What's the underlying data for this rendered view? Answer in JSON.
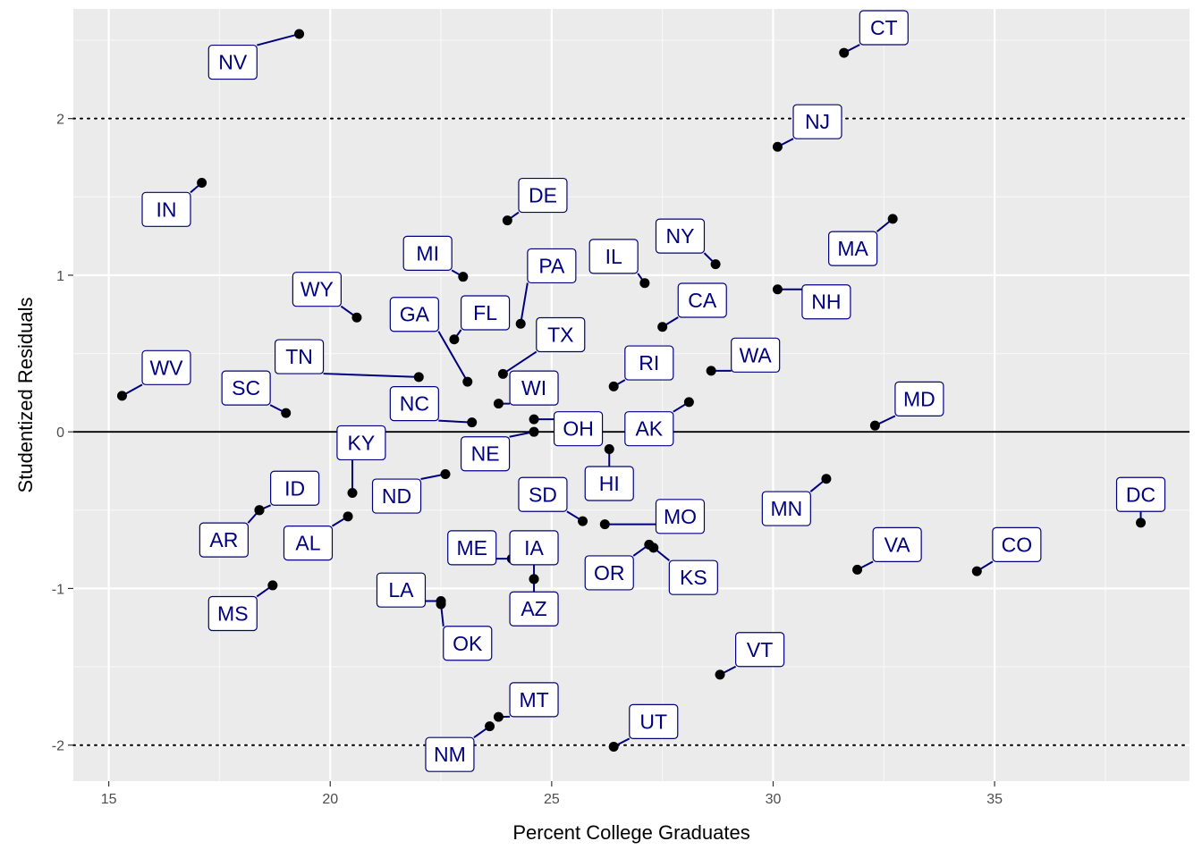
{
  "chart_data": {
    "type": "scatter",
    "title": "",
    "xlabel": "Percent College Graduates",
    "ylabel": "Studentized Residuals",
    "xlim": [
      14.2,
      39.4
    ],
    "ylim": [
      -2.23,
      2.7
    ],
    "x_ticks": [
      15,
      20,
      25,
      30,
      35
    ],
    "x_tick_labels": [
      "15",
      "20",
      "25",
      "30",
      "35"
    ],
    "y_ticks": [
      -2,
      -1,
      0,
      1,
      2
    ],
    "y_tick_labels": [
      "-2",
      "-1",
      "0",
      "1",
      "2"
    ],
    "reference_lines": [
      {
        "y": 2,
        "style": "dotted"
      },
      {
        "y": 0,
        "style": "solid"
      },
      {
        "y": -2,
        "style": "dotted"
      }
    ],
    "grid": true,
    "point_color": "#000000",
    "label_color": "#00007f",
    "points": [
      {
        "label": "NV",
        "x": 19.3,
        "y": 2.54,
        "lx": 17.8,
        "ly": 2.36
      },
      {
        "label": "CT",
        "x": 31.6,
        "y": 2.42,
        "lx": 32.5,
        "ly": 2.58
      },
      {
        "label": "NJ",
        "x": 30.1,
        "y": 1.82,
        "lx": 31.0,
        "ly": 1.98
      },
      {
        "label": "IN",
        "x": 17.1,
        "y": 1.59,
        "lx": 16.3,
        "ly": 1.42
      },
      {
        "label": "DE",
        "x": 24.0,
        "y": 1.35,
        "lx": 24.8,
        "ly": 1.51
      },
      {
        "label": "MA",
        "x": 32.7,
        "y": 1.36,
        "lx": 31.8,
        "ly": 1.17
      },
      {
        "label": "MI",
        "x": 23.0,
        "y": 0.99,
        "lx": 22.2,
        "ly": 1.14
      },
      {
        "label": "NY",
        "x": 28.7,
        "y": 1.07,
        "lx": 27.9,
        "ly": 1.25
      },
      {
        "label": "PA",
        "x": 24.3,
        "y": 0.69,
        "lx": 25.0,
        "ly": 1.06
      },
      {
        "label": "IL",
        "x": 27.1,
        "y": 0.95,
        "lx": 26.4,
        "ly": 1.12
      },
      {
        "label": "NH",
        "x": 30.1,
        "y": 0.91,
        "lx": 31.2,
        "ly": 0.83
      },
      {
        "label": "WY",
        "x": 20.6,
        "y": 0.73,
        "lx": 19.7,
        "ly": 0.91
      },
      {
        "label": "CA",
        "x": 27.5,
        "y": 0.67,
        "lx": 28.4,
        "ly": 0.84
      },
      {
        "label": "GA",
        "x": 23.1,
        "y": 0.32,
        "lx": 21.9,
        "ly": 0.75
      },
      {
        "label": "FL",
        "x": 22.8,
        "y": 0.59,
        "lx": 23.5,
        "ly": 0.76
      },
      {
        "label": "TX",
        "x": 23.9,
        "y": 0.37,
        "lx": 25.2,
        "ly": 0.62
      },
      {
        "label": "TN",
        "x": 22.0,
        "y": 0.35,
        "lx": 19.3,
        "ly": 0.48
      },
      {
        "label": "WA",
        "x": 28.6,
        "y": 0.39,
        "lx": 29.6,
        "ly": 0.49
      },
      {
        "label": "RI",
        "x": 26.4,
        "y": 0.29,
        "lx": 27.2,
        "ly": 0.44
      },
      {
        "label": "WV",
        "x": 15.3,
        "y": 0.23,
        "lx": 16.3,
        "ly": 0.41
      },
      {
        "label": "SC",
        "x": 19.0,
        "y": 0.12,
        "lx": 18.1,
        "ly": 0.28
      },
      {
        "label": "WI",
        "x": 23.8,
        "y": 0.18,
        "lx": 24.6,
        "ly": 0.28
      },
      {
        "label": "NC",
        "x": 23.2,
        "y": 0.06,
        "lx": 21.9,
        "ly": 0.18
      },
      {
        "label": "AK",
        "x": 28.1,
        "y": 0.19,
        "lx": 27.2,
        "ly": 0.02
      },
      {
        "label": "OH",
        "x": 24.6,
        "y": 0.08,
        "lx": 25.6,
        "ly": 0.02
      },
      {
        "label": "MD",
        "x": 32.3,
        "y": 0.04,
        "lx": 33.3,
        "ly": 0.21
      },
      {
        "label": "NE",
        "x": 24.6,
        "y": 0.0,
        "lx": 23.5,
        "ly": -0.14
      },
      {
        "label": "KY",
        "x": 20.5,
        "y": -0.39,
        "lx": 20.7,
        "ly": -0.07
      },
      {
        "label": "ID",
        "x": 18.4,
        "y": -0.5,
        "lx": 19.2,
        "ly": -0.36
      },
      {
        "label": "ND",
        "x": 22.6,
        "y": -0.27,
        "lx": 21.5,
        "ly": -0.41
      },
      {
        "label": "HI",
        "x": 26.3,
        "y": -0.11,
        "lx": 26.3,
        "ly": -0.33
      },
      {
        "label": "SD",
        "x": 25.7,
        "y": -0.57,
        "lx": 24.8,
        "ly": -0.4
      },
      {
        "label": "MN",
        "x": 31.2,
        "y": -0.3,
        "lx": 30.3,
        "ly": -0.49
      },
      {
        "label": "DC",
        "x": 38.3,
        "y": -0.58,
        "lx": 38.3,
        "ly": -0.4
      },
      {
        "label": "MO",
        "x": 26.2,
        "y": -0.59,
        "lx": 27.9,
        "ly": -0.54
      },
      {
        "label": "AL",
        "x": 20.4,
        "y": -0.54,
        "lx": 19.5,
        "ly": -0.71
      },
      {
        "label": "AR",
        "x": 18.4,
        "y": -0.5,
        "lx": 17.6,
        "ly": -0.69
      },
      {
        "label": "ME",
        "x": 24.1,
        "y": -0.81,
        "lx": 23.2,
        "ly": -0.74
      },
      {
        "label": "IA",
        "x": 24.6,
        "y": -0.94,
        "lx": 24.6,
        "ly": -0.74
      },
      {
        "label": "VA",
        "x": 31.9,
        "y": -0.88,
        "lx": 32.8,
        "ly": -0.72
      },
      {
        "label": "CO",
        "x": 34.6,
        "y": -0.89,
        "lx": 35.5,
        "ly": -0.72
      },
      {
        "label": "OR",
        "x": 27.2,
        "y": -0.72,
        "lx": 26.3,
        "ly": -0.9
      },
      {
        "label": "KS",
        "x": 27.3,
        "y": -0.74,
        "lx": 28.2,
        "ly": -0.93
      },
      {
        "label": "LA",
        "x": 22.5,
        "y": -1.08,
        "lx": 21.6,
        "ly": -1.01
      },
      {
        "label": "AZ",
        "x": 24.6,
        "y": -0.94,
        "lx": 24.6,
        "ly": -1.13
      },
      {
        "label": "MS",
        "x": 18.7,
        "y": -0.98,
        "lx": 17.8,
        "ly": -1.16
      },
      {
        "label": "OK",
        "x": 22.5,
        "y": -1.1,
        "lx": 23.1,
        "ly": -1.35
      },
      {
        "label": "VT",
        "x": 28.8,
        "y": -1.55,
        "lx": 29.7,
        "ly": -1.39
      },
      {
        "label": "MT",
        "x": 23.8,
        "y": -1.82,
        "lx": 24.6,
        "ly": -1.71
      },
      {
        "label": "NM",
        "x": 23.6,
        "y": -1.88,
        "lx": 22.7,
        "ly": -2.06
      },
      {
        "label": "UT",
        "x": 26.4,
        "y": -2.01,
        "lx": 27.3,
        "ly": -1.85
      }
    ]
  }
}
